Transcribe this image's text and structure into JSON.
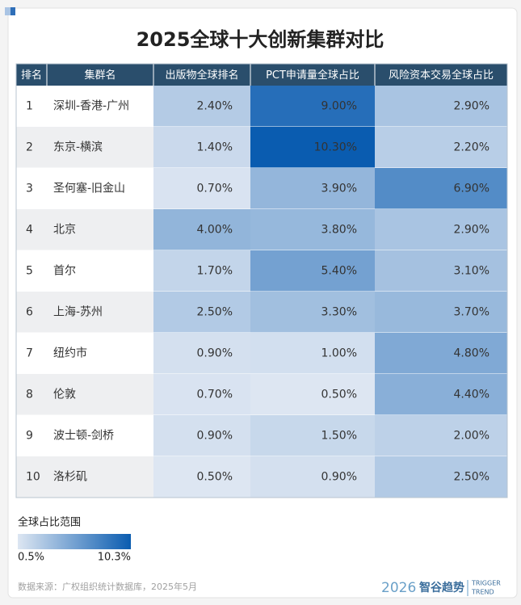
{
  "title": "2025全球十大创新集群对比",
  "table": {
    "header": [
      "排名",
      "集群名",
      "出版物全球排名",
      "PCT申请量全球占比",
      "风险资本交易全球占比"
    ],
    "rows": [
      {
        "rank": "1",
        "name": "深圳-香港-广州",
        "values": [
          2.4,
          9.0,
          2.9
        ],
        "value_labels": [
          "2.40%",
          "9.00%",
          "2.90%"
        ]
      },
      {
        "rank": "2",
        "name": "东京-横滨",
        "values": [
          1.4,
          10.3,
          2.2
        ],
        "value_labels": [
          "1.40%",
          "10.30%",
          "2.20%"
        ]
      },
      {
        "rank": "3",
        "name": "圣何塞-旧金山",
        "values": [
          0.7,
          3.9,
          6.9
        ],
        "value_labels": [
          "0.70%",
          "3.90%",
          "6.90%"
        ]
      },
      {
        "rank": "4",
        "name": "北京",
        "values": [
          4.0,
          3.8,
          2.9
        ],
        "value_labels": [
          "4.00%",
          "3.80%",
          "2.90%"
        ]
      },
      {
        "rank": "5",
        "name": "首尔",
        "values": [
          1.7,
          5.4,
          3.1
        ],
        "value_labels": [
          "1.70%",
          "5.40%",
          "3.10%"
        ]
      },
      {
        "rank": "6",
        "name": "上海-苏州",
        "values": [
          2.5,
          3.3,
          3.7
        ],
        "value_labels": [
          "2.50%",
          "3.30%",
          "3.70%"
        ]
      },
      {
        "rank": "7",
        "name": "纽约市",
        "values": [
          0.9,
          1.0,
          4.8
        ],
        "value_labels": [
          "0.90%",
          "1.00%",
          "4.80%"
        ]
      },
      {
        "rank": "8",
        "name": "伦敦",
        "values": [
          0.7,
          0.5,
          4.4
        ],
        "value_labels": [
          "0.70%",
          "0.50%",
          "4.40%"
        ]
      },
      {
        "rank": "9",
        "name": "波士顿-剑桥",
        "values": [
          0.9,
          1.5,
          2.0
        ],
        "value_labels": [
          "0.90%",
          "1.50%",
          "2.00%"
        ]
      },
      {
        "rank": "10",
        "name": "洛杉矶",
        "values": [
          0.5,
          0.9,
          2.5
        ],
        "value_labels": [
          "0.50%",
          "0.90%",
          "2.50%"
        ]
      }
    ]
  },
  "legend": {
    "title": "全球占比范围",
    "min": 0.5,
    "max": 10.3,
    "min_label": "0.5%",
    "max_label": "10.3%",
    "colors": [
      "#dde6f2",
      "#0a5cb0"
    ]
  },
  "footer": {
    "source": "数据来源：广权组织统计数据库，2025年5月",
    "year": "2026",
    "brand": "智谷趋势",
    "brand_en": [
      "TRIGGER",
      "TREND"
    ]
  }
}
